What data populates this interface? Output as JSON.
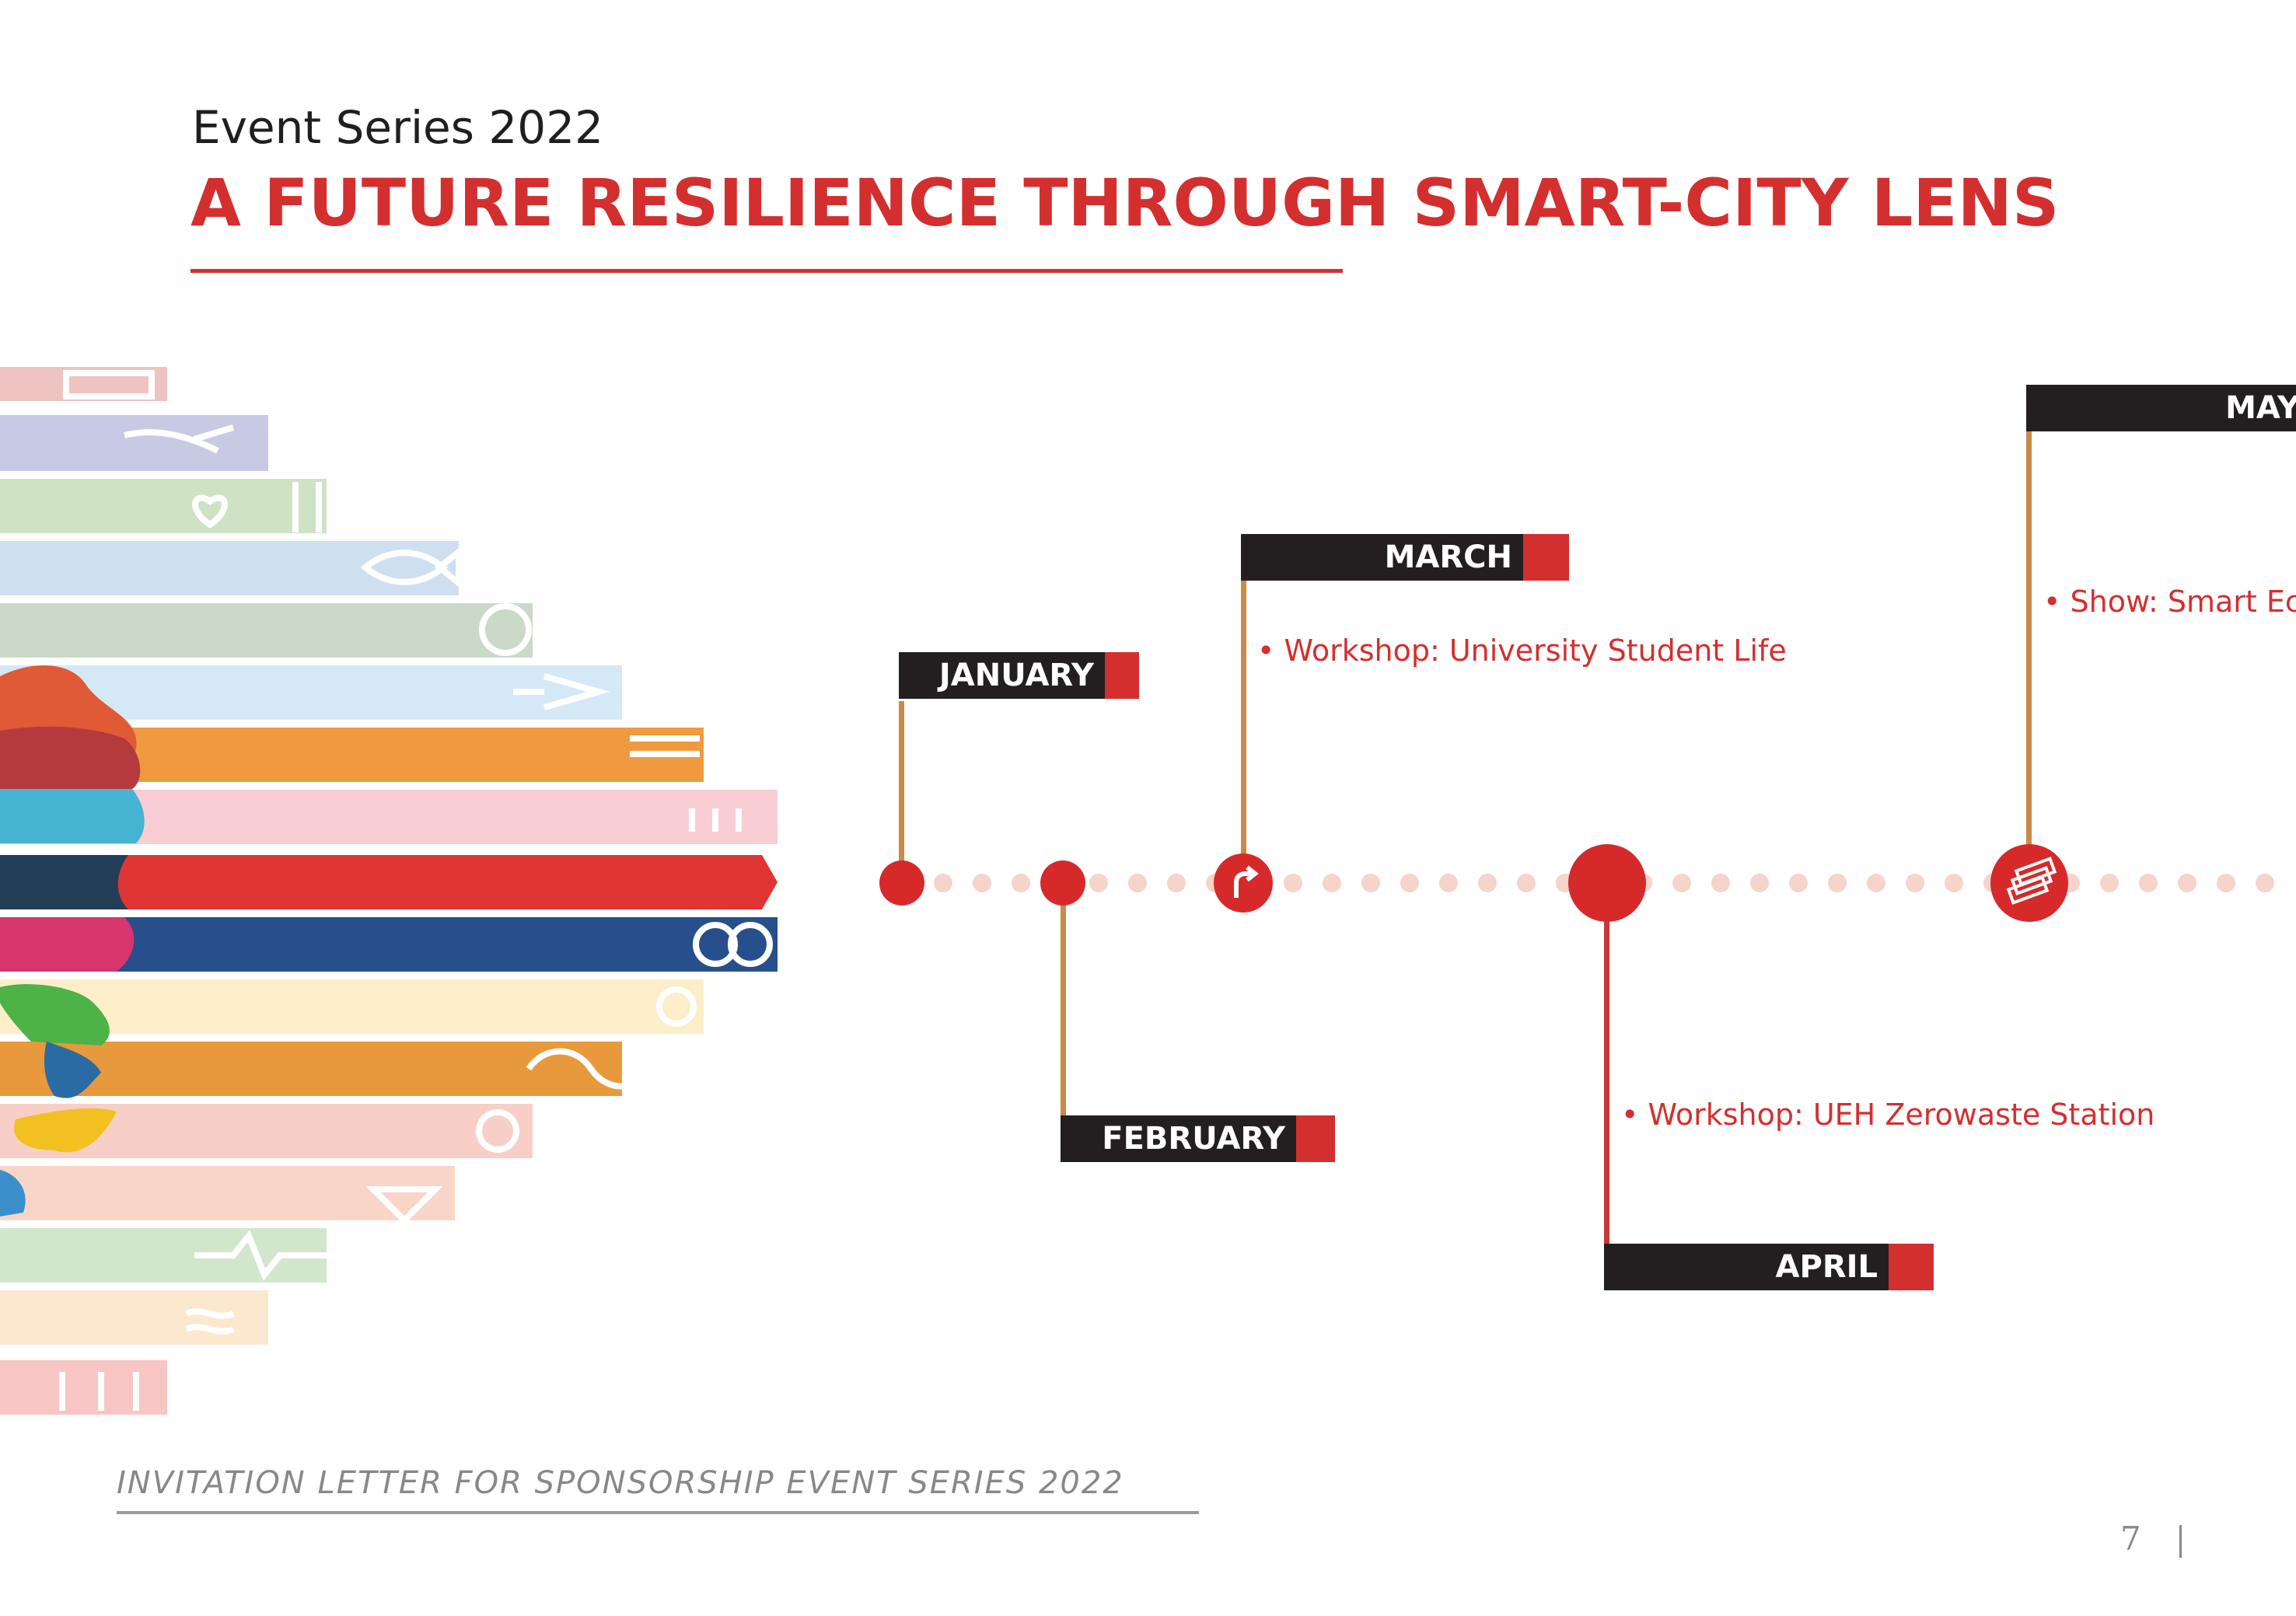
{
  "header": {
    "subtitle": "Event Series 2022",
    "title": "A FUTURE RESILIENCE THROUGH SMART-CITY LENS"
  },
  "timeline": {
    "colors": {
      "accent": "#d32f2f",
      "flag": "#231f20",
      "pole": "#c98b45",
      "dot": "#f6d3cb"
    },
    "months": [
      {
        "label": "JANUARY"
      },
      {
        "label": "FEBRUARY"
      },
      {
        "label": "MARCH",
        "item": "• Workshop: University Student Life",
        "icon": "arrow-turn-icon"
      },
      {
        "label": "APRIL",
        "item": "• Workshop: UEH Zerowaste Station"
      },
      {
        "label": "MAY",
        "item": "• Show:  Smart Ec",
        "icon": "money-stack-icon"
      }
    ]
  },
  "sdg_colors": [
    "#f0c3c3",
    "#c8c9e3",
    "#cfe3c4",
    "#cedff0",
    "#cbd9c8",
    "#d5e8f6",
    "#ef9a3f",
    "#f8cdd3",
    "#e03535",
    "#264f8c",
    "#fbeec8",
    "#e8993b",
    "#f8cfc6",
    "#f9d5c8",
    "#d2e6cc",
    "#fbe8cf",
    "#f7c6c4"
  ],
  "footer": {
    "text": "INVITATION LETTER FOR SPONSORSHIP EVENT SERIES 2022",
    "page": "7"
  }
}
